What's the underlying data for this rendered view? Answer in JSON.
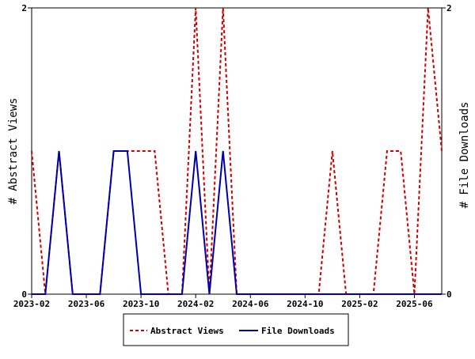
{
  "chart_data": {
    "type": "line",
    "x": [
      "2023-02",
      "2023-03",
      "2023-04",
      "2023-05",
      "2023-06",
      "2023-07",
      "2023-08",
      "2023-09",
      "2023-10",
      "2023-11",
      "2023-12",
      "2024-01",
      "2024-02",
      "2024-03",
      "2024-04",
      "2024-05",
      "2024-06",
      "2024-07",
      "2024-08",
      "2024-09",
      "2024-10",
      "2024-11",
      "2024-12",
      "2025-01",
      "2025-02",
      "2025-03",
      "2025-04",
      "2025-05",
      "2025-06",
      "2025-07",
      "2025-08"
    ],
    "x_tick_labels": [
      "2023-02",
      "2023-06",
      "2023-10",
      "2024-02",
      "2024-06",
      "2024-10",
      "2025-02",
      "2025-06"
    ],
    "ylabel_left": "# Abstract Views",
    "ylabel_right": "# File Downloads",
    "ylim_left": [
      0,
      2
    ],
    "ylim_right": [
      0,
      2
    ],
    "y_tick_labels_left": [
      "0",
      "2"
    ],
    "y_tick_labels_right": [
      "0",
      "2"
    ],
    "legend_position": "bottom",
    "grid": false,
    "series": [
      {
        "name": "Abstract Views",
        "axis": "left",
        "color": "#cc0000",
        "style": "dashed",
        "values": [
          1,
          0,
          1,
          0,
          0,
          0,
          1,
          1,
          1,
          1,
          0,
          0,
          2,
          0,
          2,
          0,
          0,
          0,
          0,
          0,
          0,
          0,
          1,
          0,
          0,
          0,
          1,
          1,
          0,
          2,
          1
        ]
      },
      {
        "name": "File Downloads",
        "axis": "right",
        "color": "#0000aa",
        "style": "solid",
        "values": [
          0,
          0,
          1,
          0,
          0,
          0,
          1,
          1,
          0,
          0,
          0,
          0,
          1,
          0,
          1,
          0,
          0,
          0,
          0,
          0,
          0,
          0,
          0,
          0,
          0,
          0,
          0,
          0,
          0,
          0,
          0
        ]
      }
    ]
  }
}
